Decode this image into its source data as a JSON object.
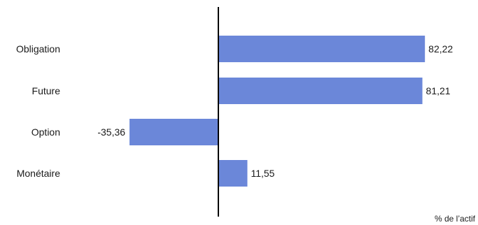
{
  "chart_data": {
    "type": "bar",
    "orientation": "horizontal",
    "categories": [
      "Obligation",
      "Future",
      "Option",
      "Monétaire"
    ],
    "values": [
      82.22,
      81.21,
      -35.36,
      11.55
    ],
    "value_labels": [
      "82,22",
      "81,21",
      "-35,36",
      "11,55"
    ],
    "unit_label": "% de l’actif",
    "xlim": [
      -36,
      82.22
    ],
    "bar_color": "#6b87d9",
    "axis_color": "#000000",
    "grid": false,
    "legend": "none"
  }
}
